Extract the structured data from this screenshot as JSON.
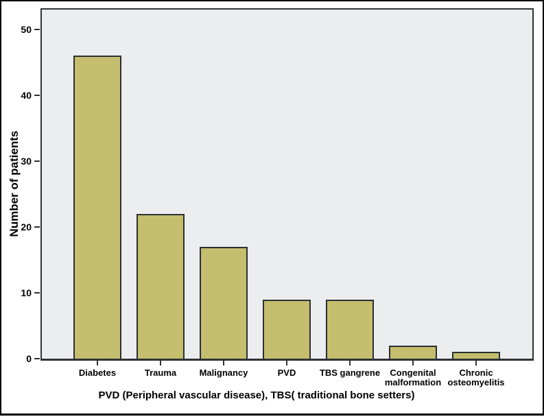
{
  "figure": {
    "caption": "PVD (Peripheral vascular disease), TBS( traditional bone setters)"
  },
  "chart_data": {
    "type": "bar",
    "title": "",
    "xlabel": "",
    "ylabel": "Number of patients",
    "categories": [
      "Diabetes",
      "Trauma",
      "Malignancy",
      "PVD",
      "TBS gangrene",
      "Congenital malformation",
      "Chronic osteomyelitis"
    ],
    "values": [
      46,
      22,
      17,
      9,
      9,
      2,
      1
    ],
    "yticks": [
      0,
      10,
      20,
      30,
      40,
      50
    ],
    "ylim": [
      0,
      53
    ],
    "grid": false,
    "legend": false,
    "colors": {
      "bar_fill": "#c4be6e",
      "bar_border": "#2b2f33",
      "plot_bg": "#ecedef",
      "axis": "#2f3337",
      "frame": "#000000",
      "background": "#ffffff",
      "text": "#000000"
    }
  }
}
